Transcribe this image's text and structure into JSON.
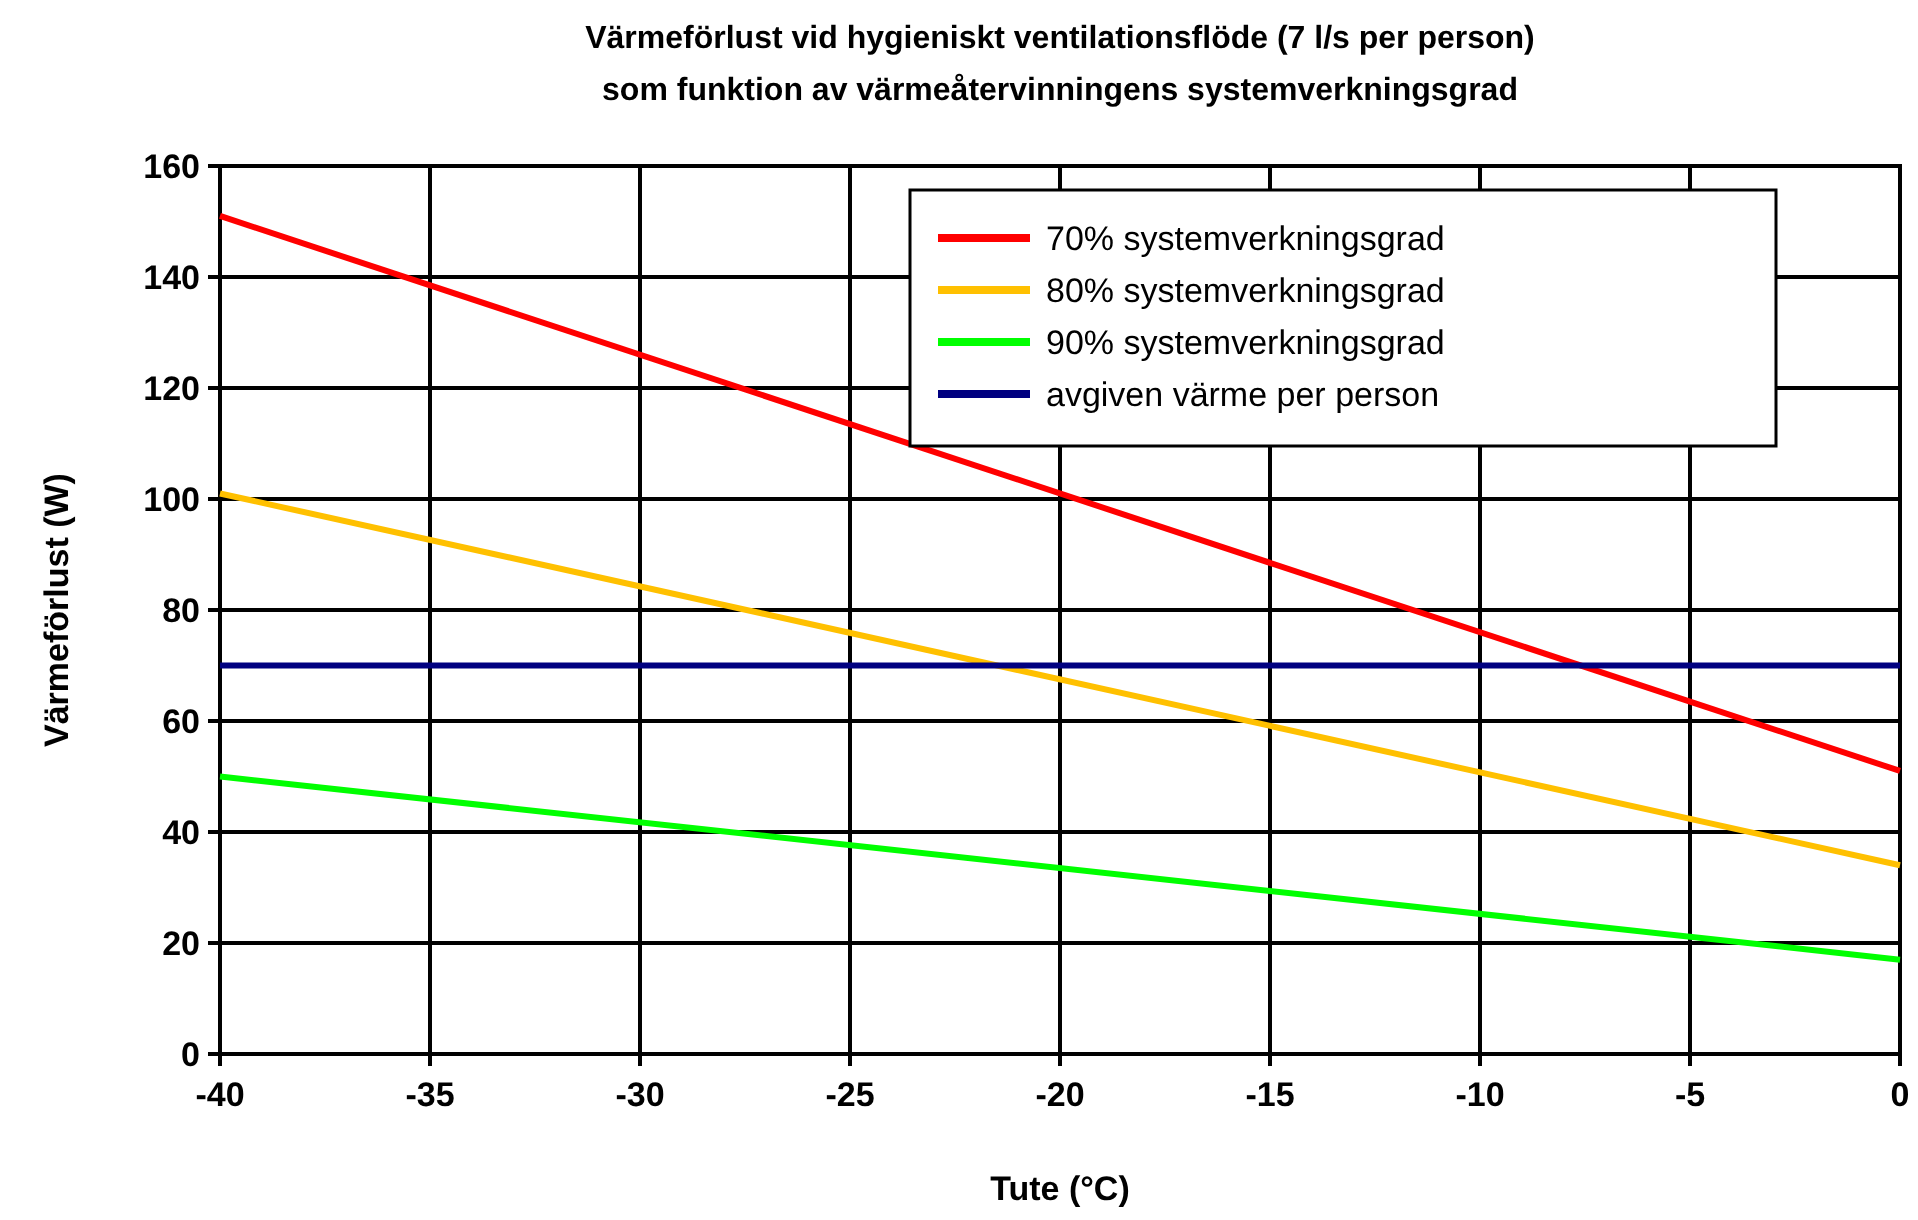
{
  "chart_data": {
    "type": "line",
    "title": "Värmeförlust vid hygieniskt ventilationsflöde (7 l/s per person)",
    "subtitle": "som funktion av  värmeåtervinningens systemverkningsgrad",
    "xlabel": "Tute (°C)",
    "ylabel": "Värmeförlust (W)",
    "x": [
      -40,
      0
    ],
    "series": [
      {
        "name": "70% systemverkningsgrad",
        "color": "#ff0000",
        "values": [
          151,
          51
        ]
      },
      {
        "name": "80% systemverkningsgrad",
        "color": "#ffc000",
        "values": [
          101,
          34
        ]
      },
      {
        "name": "90% systemverkningsgrad",
        "color": "#00ff00",
        "values": [
          50,
          17
        ]
      },
      {
        "name": "avgiven värme per person",
        "color": "#000080",
        "values": [
          70,
          70
        ]
      }
    ],
    "xlim": [
      -40,
      0
    ],
    "xticks": [
      -40,
      -35,
      -30,
      -25,
      -20,
      -15,
      -10,
      -5,
      0
    ],
    "ylim": [
      0,
      160
    ],
    "yticks": [
      0,
      20,
      40,
      60,
      80,
      100,
      120,
      140,
      160
    ],
    "grid": true,
    "legend": "top right",
    "marker": "none",
    "line_style": "solid"
  }
}
